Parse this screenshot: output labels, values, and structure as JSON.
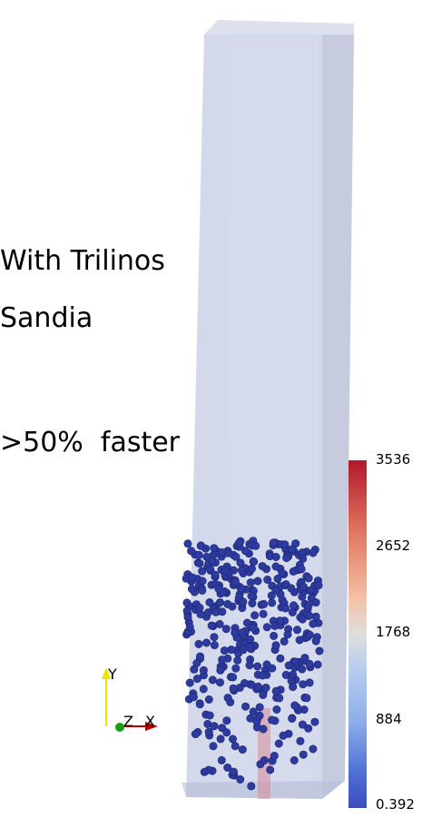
{
  "captions": {
    "line1": "With Trilinos",
    "line2": "Sandia",
    "line3": ">50%  faster"
  },
  "color_scale": {
    "max_label": "3536",
    "label_2": "2652",
    "mid_label": "1768",
    "label_4": "884",
    "min_label": "0.392",
    "colors": {
      "high": "#b2182b",
      "mid": "#dddddd",
      "low": "#3b4cc0"
    }
  },
  "axes_widget": {
    "y_label": "Y",
    "z_label": "Z",
    "x_label": "X",
    "colors": {
      "y": "#e6e600",
      "x": "#b00000",
      "z": "#16a016"
    }
  },
  "scene": {
    "container_color": "#c9cfe6",
    "particle_color": "#2d3a9e"
  }
}
